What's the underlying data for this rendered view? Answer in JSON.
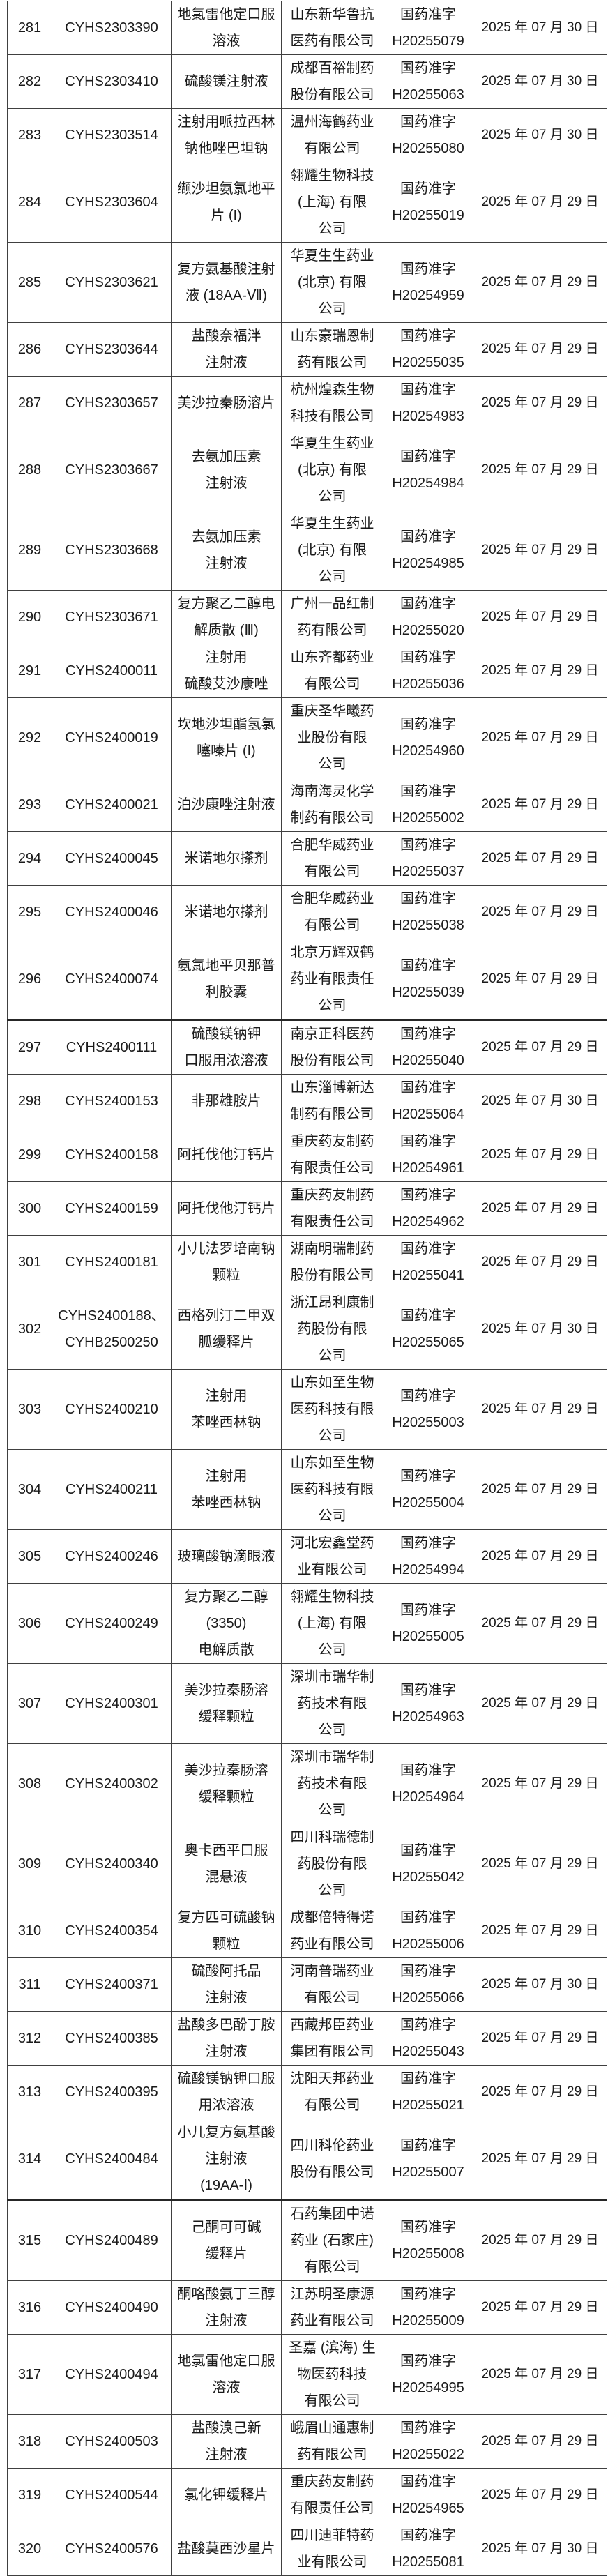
{
  "style": {
    "border_color": "#404040",
    "thick_border_color": "#262626",
    "text_color": "#1a1a1a",
    "background_color": "#ffffff"
  },
  "table": {
    "approval_prefix": "国药准字",
    "rows": [
      {
        "row_no": "281",
        "acceptance_no": "CYHS2303390",
        "drug_name": "地氯雷他定口服\n溶液",
        "company": "山东新华鲁抗\n医药有限公司",
        "approval_no": "国药准字\nH20255079",
        "approval_date": "2025 年 07 月 30 日"
      },
      {
        "row_no": "282",
        "acceptance_no": "CYHS2303410",
        "drug_name": "硫酸镁注射液",
        "company": "成都百裕制药\n股份有限公司",
        "approval_no": "国药准字\nH20255063",
        "approval_date": "2025 年 07 月 30 日"
      },
      {
        "row_no": "283",
        "acceptance_no": "CYHS2303514",
        "drug_name": "注射用哌拉西林\n钠他唑巴坦钠",
        "company": "温州海鹤药业\n有限公司",
        "approval_no": "国药准字\nH20255080",
        "approval_date": "2025 年 07 月 30 日"
      },
      {
        "row_no": "284",
        "acceptance_no": "CYHS2303604",
        "drug_name": "缬沙坦氨氯地平\n片 (I)",
        "company": "翎耀生物科技\n(上海) 有限\n公司",
        "approval_no": "国药准字\nH20255019",
        "approval_date": "2025 年 07 月 29 日"
      },
      {
        "row_no": "285",
        "acceptance_no": "CYHS2303621",
        "drug_name": "复方氨基酸注射\n液 (18AA-Ⅶ)",
        "company": "华夏生生药业\n(北京) 有限\n公司",
        "approval_no": "国药准字\nH20254959",
        "approval_date": "2025 年 07 月 29 日"
      },
      {
        "row_no": "286",
        "acceptance_no": "CYHS2303644",
        "drug_name": "盐酸奈福泮\n注射液",
        "company": "山东豪瑞恩制\n药有限公司",
        "approval_no": "国药准字\nH20255035",
        "approval_date": "2025 年 07 月 29 日"
      },
      {
        "row_no": "287",
        "acceptance_no": "CYHS2303657",
        "drug_name": "美沙拉秦肠溶片",
        "company": "杭州煌森生物\n科技有限公司",
        "approval_no": "国药准字\nH20254983",
        "approval_date": "2025 年 07 月 29 日"
      },
      {
        "row_no": "288",
        "acceptance_no": "CYHS2303667",
        "drug_name": "去氨加压素\n注射液",
        "company": "华夏生生药业\n(北京) 有限\n公司",
        "approval_no": "国药准字\nH20254984",
        "approval_date": "2025 年 07 月 29 日"
      },
      {
        "row_no": "289",
        "acceptance_no": "CYHS2303668",
        "drug_name": "去氨加压素\n注射液",
        "company": "华夏生生药业\n(北京) 有限\n公司",
        "approval_no": "国药准字\nH20254985",
        "approval_date": "2025 年 07 月 29 日"
      },
      {
        "row_no": "290",
        "acceptance_no": "CYHS2303671",
        "drug_name": "复方聚乙二醇电\n解质散 (Ⅲ)",
        "company": "广州一品红制\n药有限公司",
        "approval_no": "国药准字\nH20255020",
        "approval_date": "2025 年 07 月 29 日"
      },
      {
        "row_no": "291",
        "acceptance_no": "CYHS2400011",
        "drug_name": "注射用\n硫酸艾沙康唑",
        "company": "山东齐都药业\n有限公司",
        "approval_no": "国药准字\nH20255036",
        "approval_date": "2025 年 07 月 29 日"
      },
      {
        "row_no": "292",
        "acceptance_no": "CYHS2400019",
        "drug_name": "坎地沙坦酯氢氯\n噻嗪片 (I)",
        "company": "重庆圣华曦药\n业股份有限\n公司",
        "approval_no": "国药准字\nH20254960",
        "approval_date": "2025 年 07 月 29 日"
      },
      {
        "row_no": "293",
        "acceptance_no": "CYHS2400021",
        "drug_name": "泊沙康唑注射液",
        "company": "海南海灵化学\n制药有限公司",
        "approval_no": "国药准字\nH20255002",
        "approval_date": "2025 年 07 月 29 日"
      },
      {
        "row_no": "294",
        "acceptance_no": "CYHS2400045",
        "drug_name": "米诺地尔搽剂",
        "company": "合肥华威药业\n有限公司",
        "approval_no": "国药准字\nH20255037",
        "approval_date": "2025 年 07 月 29 日"
      },
      {
        "row_no": "295",
        "acceptance_no": "CYHS2400046",
        "drug_name": "米诺地尔搽剂",
        "company": "合肥华威药业\n有限公司",
        "approval_no": "国药准字\nH20255038",
        "approval_date": "2025 年 07 月 29 日"
      },
      {
        "row_no": "296",
        "acceptance_no": "CYHS2400074",
        "drug_name": "氨氯地平贝那普\n利胶囊",
        "company": "北京万辉双鹤\n药业有限责任\n公司",
        "approval_no": "国药准字\nH20255039",
        "approval_date": "2025 年 07 月 29 日"
      },
      {
        "row_no": "297",
        "acceptance_no": "CYHS2400111",
        "drug_name": "硫酸镁钠钾\n口服用浓溶液",
        "company": "南京正科医药\n股份有限公司",
        "approval_no": "国药准字\nH20255040",
        "approval_date": "2025 年 07 月 29 日",
        "thick_top": true
      },
      {
        "row_no": "298",
        "acceptance_no": "CYHS2400153",
        "drug_name": "非那雄胺片",
        "company": "山东淄博新达\n制药有限公司",
        "approval_no": "国药准字\nH20255064",
        "approval_date": "2025 年 07 月 30 日"
      },
      {
        "row_no": "299",
        "acceptance_no": "CYHS2400158",
        "drug_name": "阿托伐他汀钙片",
        "company": "重庆药友制药\n有限责任公司",
        "approval_no": "国药准字\nH20254961",
        "approval_date": "2025 年 07 月 29 日"
      },
      {
        "row_no": "300",
        "acceptance_no": "CYHS2400159",
        "drug_name": "阿托伐他汀钙片",
        "company": "重庆药友制药\n有限责任公司",
        "approval_no": "国药准字\nH20254962",
        "approval_date": "2025 年 07 月 29 日"
      },
      {
        "row_no": "301",
        "acceptance_no": "CYHS2400181",
        "drug_name": "小儿法罗培南钠\n颗粒",
        "company": "湖南明瑞制药\n股份有限公司",
        "approval_no": "国药准字\nH20255041",
        "approval_date": "2025 年 07 月 29 日"
      },
      {
        "row_no": "302",
        "acceptance_no": "CYHS2400188、\nCYHB2500250",
        "drug_name": "西格列汀二甲双\n胍缓释片",
        "company": "浙江昂利康制\n药股份有限\n公司",
        "approval_no": "国药准字\nH20255065",
        "approval_date": "2025 年 07 月 30 日"
      },
      {
        "row_no": "303",
        "acceptance_no": "CYHS2400210",
        "drug_name": "注射用\n苯唑西林钠",
        "company": "山东如至生物\n医药科技有限\n公司",
        "approval_no": "国药准字\nH20255003",
        "approval_date": "2025 年 07 月 29 日"
      },
      {
        "row_no": "304",
        "acceptance_no": "CYHS2400211",
        "drug_name": "注射用\n苯唑西林钠",
        "company": "山东如至生物\n医药科技有限\n公司",
        "approval_no": "国药准字\nH20255004",
        "approval_date": "2025 年 07 月 29 日"
      },
      {
        "row_no": "305",
        "acceptance_no": "CYHS2400246",
        "drug_name": "玻璃酸钠滴眼液",
        "company": "河北宏鑫堂药\n业有限公司",
        "approval_no": "国药准字\nH20254994",
        "approval_date": "2025 年 07 月 29 日"
      },
      {
        "row_no": "306",
        "acceptance_no": "CYHS2400249",
        "drug_name": "复方聚乙二醇\n(3350)\n电解质散",
        "company": "翎耀生物科技\n(上海) 有限\n公司",
        "approval_no": "国药准字\nH20255005",
        "approval_date": "2025 年 07 月 29 日"
      },
      {
        "row_no": "307",
        "acceptance_no": "CYHS2400301",
        "drug_name": "美沙拉秦肠溶\n缓释颗粒",
        "company": "深圳市瑞华制\n药技术有限\n公司",
        "approval_no": "国药准字\nH20254963",
        "approval_date": "2025 年 07 月 29 日"
      },
      {
        "row_no": "308",
        "acceptance_no": "CYHS2400302",
        "drug_name": "美沙拉秦肠溶\n缓释颗粒",
        "company": "深圳市瑞华制\n药技术有限\n公司",
        "approval_no": "国药准字\nH20254964",
        "approval_date": "2025 年 07 月 29 日"
      },
      {
        "row_no": "309",
        "acceptance_no": "CYHS2400340",
        "drug_name": "奥卡西平口服\n混悬液",
        "company": "四川科瑞德制\n药股份有限\n公司",
        "approval_no": "国药准字\nH20255042",
        "approval_date": "2025 年 07 月 29 日"
      },
      {
        "row_no": "310",
        "acceptance_no": "CYHS2400354",
        "drug_name": "复方匹可硫酸钠\n颗粒",
        "company": "成都倍特得诺\n药业有限公司",
        "approval_no": "国药准字\nH20255006",
        "approval_date": "2025 年 07 月 29 日"
      },
      {
        "row_no": "311",
        "acceptance_no": "CYHS2400371",
        "drug_name": "硫酸阿托品\n注射液",
        "company": "河南普瑞药业\n有限公司",
        "approval_no": "国药准字\nH20255066",
        "approval_date": "2025 年 07 月 30 日"
      },
      {
        "row_no": "312",
        "acceptance_no": "CYHS2400385",
        "drug_name": "盐酸多巴酚丁胺\n注射液",
        "company": "西藏邦臣药业\n集团有限公司",
        "approval_no": "国药准字\nH20255043",
        "approval_date": "2025 年 07 月 29 日"
      },
      {
        "row_no": "313",
        "acceptance_no": "CYHS2400395",
        "drug_name": "硫酸镁钠钾口服\n用浓溶液",
        "company": "沈阳天邦药业\n有限公司",
        "approval_no": "国药准字\nH20255021",
        "approval_date": "2025 年 07 月 29 日"
      },
      {
        "row_no": "314",
        "acceptance_no": "CYHS2400484",
        "drug_name": "小儿复方氨基酸\n注射液\n(19AA-Ⅰ)",
        "company": "四川科伦药业\n股份有限公司",
        "approval_no": "国药准字\nH20255007",
        "approval_date": "2025 年 07 月 29 日"
      },
      {
        "row_no": "315",
        "acceptance_no": "CYHS2400489",
        "drug_name": "己酮可可碱\n缓释片",
        "company": "石药集团中诺\n药业 (石家庄)\n有限公司",
        "approval_no": "国药准字\nH20255008",
        "approval_date": "2025 年 07 月 29 日",
        "thick_top": true
      },
      {
        "row_no": "316",
        "acceptance_no": "CYHS2400490",
        "drug_name": "酮咯酸氨丁三醇\n注射液",
        "company": "江苏明圣康源\n药业有限公司",
        "approval_no": "国药准字\nH20255009",
        "approval_date": "2025 年 07 月 29 日"
      },
      {
        "row_no": "317",
        "acceptance_no": "CYHS2400494",
        "drug_name": "地氯雷他定口服\n溶液",
        "company": "圣嘉 (滨海) 生\n物医药科技\n有限公司",
        "approval_no": "国药准字\nH20254995",
        "approval_date": "2025 年 07 月 29 日"
      },
      {
        "row_no": "318",
        "acceptance_no": "CYHS2400503",
        "drug_name": "盐酸溴己新\n注射液",
        "company": "峨眉山通惠制\n药有限公司",
        "approval_no": "国药准字\nH20255022",
        "approval_date": "2025 年 07 月 29 日"
      },
      {
        "row_no": "319",
        "acceptance_no": "CYHS2400544",
        "drug_name": "氯化钾缓释片",
        "company": "重庆药友制药\n有限责任公司",
        "approval_no": "国药准字\nH20254965",
        "approval_date": "2025 年 07 月 29 日"
      },
      {
        "row_no": "320",
        "acceptance_no": "CYHS2400576",
        "drug_name": "盐酸莫西沙星片",
        "company": "四川迪菲特药\n业有限公司",
        "approval_no": "国药准字\nH20255081",
        "approval_date": "2025 年 07 月 30 日"
      }
    ]
  }
}
